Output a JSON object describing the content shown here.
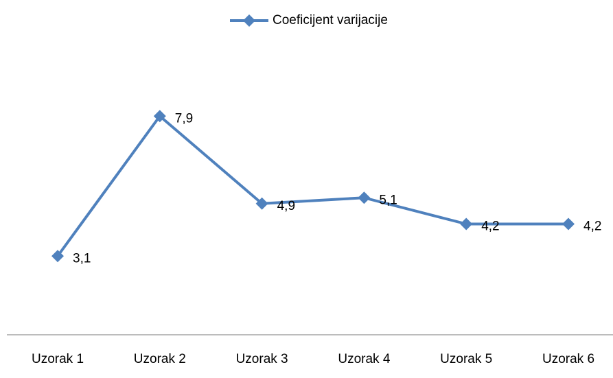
{
  "chart_data": {
    "type": "line",
    "categories": [
      "Uzorak 1",
      "Uzorak 2",
      "Uzorak 3",
      "Uzorak 4",
      "Uzorak 5",
      "Uzorak 6"
    ],
    "series": [
      {
        "name": "Coeficijent varijacije",
        "color": "#4f81bd",
        "values": [
          3.1,
          7.9,
          4.9,
          5.1,
          4.2,
          4.2
        ],
        "value_labels": [
          "3,1",
          "7,9",
          "4,9",
          "5,1",
          "4,2",
          "4,2"
        ]
      }
    ],
    "ylim": [
      0,
      10
    ],
    "legend": "top"
  }
}
